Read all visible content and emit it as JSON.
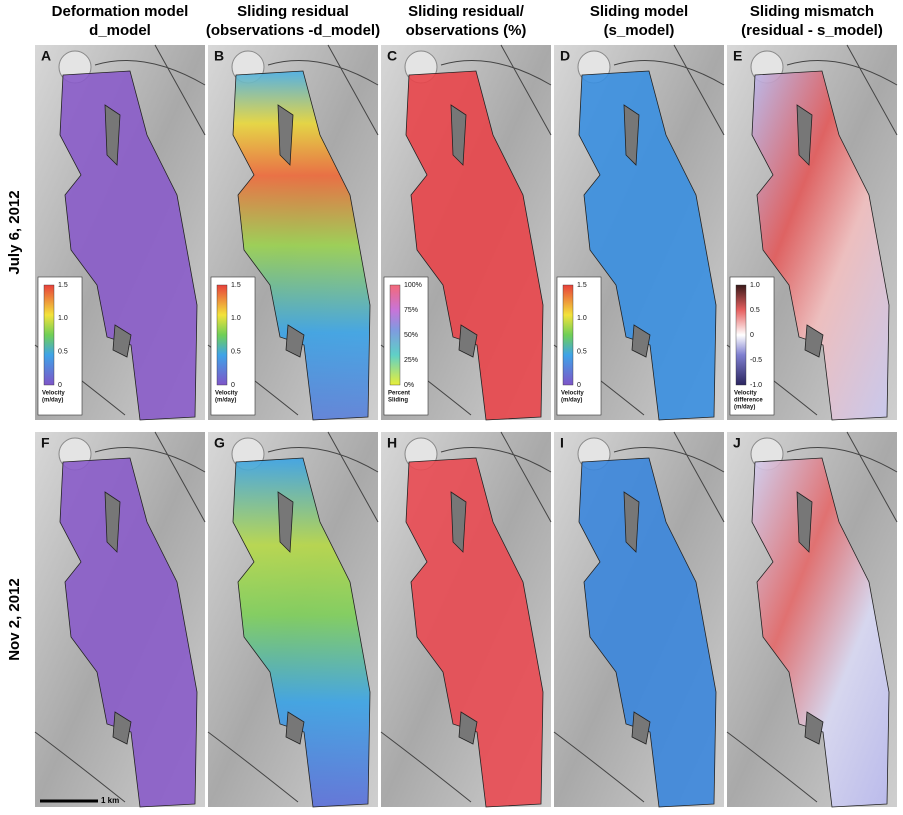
{
  "columns": [
    {
      "title_lines": [
        "Deformation model",
        "d_model"
      ]
    },
    {
      "title_lines": [
        "Sliding residual",
        "(observations -d_model)"
      ]
    },
    {
      "title_lines": [
        "Sliding residual/",
        "observations (%)"
      ]
    },
    {
      "title_lines": [
        "Sliding model",
        "(s_model)"
      ]
    },
    {
      "title_lines": [
        "Sliding mismatch",
        "(residual - s_model)"
      ]
    }
  ],
  "rows": [
    {
      "label": "July 6, 2012",
      "panels": [
        "A",
        "B",
        "C",
        "D",
        "E"
      ]
    },
    {
      "label": "Nov 2, 2012",
      "panels": [
        "F",
        "G",
        "H",
        "I",
        "J"
      ]
    }
  ],
  "colorbars": [
    {
      "ticks": [
        "1.5",
        "1.0",
        "0.5",
        "0"
      ],
      "label_lines": [
        "Velocity",
        "(m/day)"
      ]
    },
    {
      "ticks": [
        "1.5",
        "1.0",
        "0.5",
        "0"
      ],
      "label_lines": [
        "Velocity",
        "(m/day)"
      ]
    },
    {
      "ticks": [
        "100%",
        "75%",
        "50%",
        "25%",
        "0%"
      ],
      "label_lines": [
        "Percent",
        "Sliding"
      ]
    },
    {
      "ticks": [
        "1.5",
        "1.0",
        "0.5",
        "0"
      ],
      "label_lines": [
        "Velocity",
        "(m/day)"
      ]
    },
    {
      "ticks": [
        "1.0",
        "0.5",
        "0",
        "-0.5",
        "-1.0"
      ],
      "label_lines": [
        "Velocity",
        "difference",
        "(m/day)"
      ]
    }
  ],
  "scale_bar": "1 km"
}
